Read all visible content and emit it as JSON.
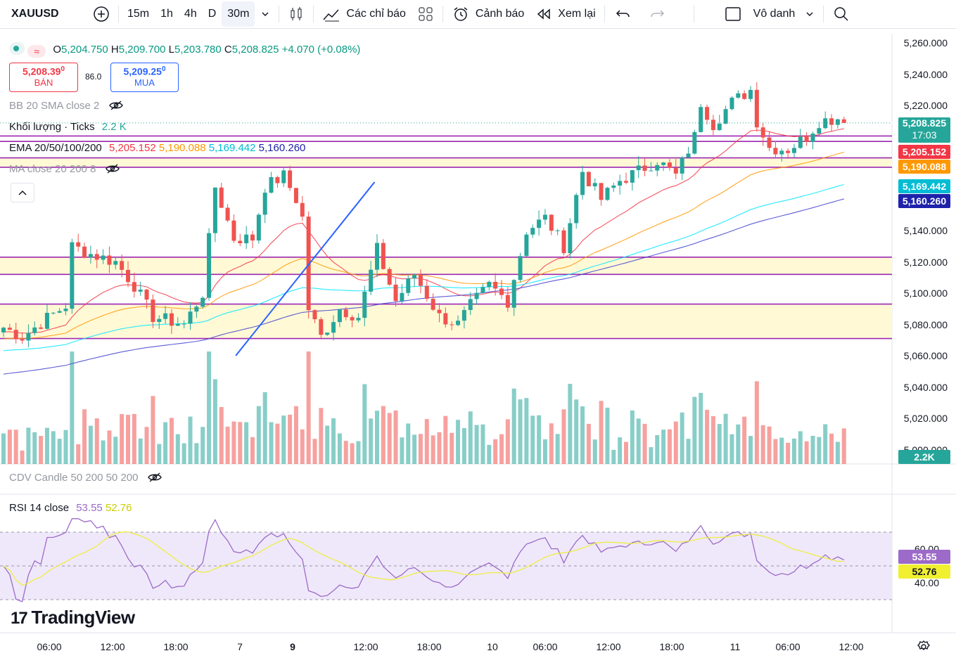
{
  "toolbar": {
    "symbol": "XAUUSD",
    "intervals": [
      "15m",
      "1h",
      "4h",
      "D",
      "30m"
    ],
    "active_interval": "30m",
    "indicators_label": "Các chỉ báo",
    "alerts_label": "Cảnh báo",
    "replay_label": "Xem lại",
    "layout_name": "Vô danh"
  },
  "ohlc": {
    "o_label": "O",
    "o": "5,204.750",
    "h_label": "H",
    "h": "5,209.700",
    "l_label": "L",
    "l": "5,203.780",
    "c_label": "C",
    "c": "5,208.825",
    "change": "+4.070 (+0.08%)"
  },
  "trade": {
    "sell_price": "5,208.39",
    "sell_sup": "0",
    "sell_label": "BÁN",
    "spread": "86.0",
    "buy_price": "5,209.25",
    "buy_sup": "0",
    "buy_label": "MUA"
  },
  "indicators": {
    "bb": "BB 20 SMA close 2",
    "volume": "Khối lượng · Ticks",
    "volume_value": "2.2 K",
    "ema": "EMA 20/50/100/200",
    "ema_values": [
      "5,205.152",
      "5,190.088",
      "5,169.442",
      "5,160.260"
    ],
    "ma": "MA close 20 200 8",
    "cdv": "CDV Candle 50 200 50 200",
    "rsi": "RSI 14 close",
    "rsi_value": "53.55",
    "rsi_ma_value": "52.76"
  },
  "price_labels": [
    {
      "value": "5,208.825",
      "sub": "17:03",
      "color": "#26a69a"
    },
    {
      "value": "5,205.152",
      "color": "#f23645"
    },
    {
      "value": "5,190.088",
      "color": "#ff9800"
    },
    {
      "value": "5,169.442",
      "color": "#00bcd4"
    },
    {
      "value": "5,160.260",
      "color": "#1e22aa"
    }
  ],
  "volume_label": "2.2K",
  "price_axis": [
    "5,260.000",
    "5,240.000",
    "5,220.000",
    "5,200.000",
    "5,180.000",
    "5,160.000",
    "5,140.000",
    "5,120.000",
    "5,100.000",
    "5,080.000",
    "5,060.000",
    "5,040.000",
    "5,020.000",
    "5,000.000"
  ],
  "rsi_axis": [
    "60.00",
    "40.00"
  ],
  "time_axis": [
    "06:00",
    "12:00",
    "18:00",
    "7",
    "9",
    "12:00",
    "18:00",
    "10",
    "06:00",
    "12:00",
    "18:00",
    "11",
    "06:00",
    "12:00"
  ],
  "branding": "TradingView",
  "colors": {
    "up": "#26a69a",
    "down": "#ef5350",
    "ema20": "#f23645",
    "ema50": "#ff9800",
    "ema100": "#00e5ff",
    "ema200": "#3f3fcf",
    "level": "#9c27b0",
    "zone": "#fff9d6",
    "trend": "#2962ff",
    "rsi": "#9c6ac8",
    "rsi_ma": "#eeee44"
  },
  "chart_data": {
    "type": "candlestick",
    "symbol": "XAUUSD",
    "interval": "30m",
    "ylim": [
      4995,
      5265
    ],
    "x_ticks": [
      "06:00",
      "12:00",
      "18:00",
      "7",
      "9",
      "12:00",
      "18:00",
      "10",
      "06:00",
      "12:00",
      "18:00",
      "11",
      "06:00",
      "12:00"
    ],
    "horizontal_levels": [
      5200.5,
      5197,
      5186.5,
      5180.5,
      5123,
      5112,
      5093,
      5071
    ],
    "zones": [
      [
        5180.5,
        5186.5
      ],
      [
        5071,
        5093
      ],
      [
        5112,
        5123
      ]
    ],
    "trendline": {
      "from": [
        37.3,
        5060
      ],
      "to": [
        59.6,
        5171
      ]
    },
    "close_anchors": [
      [
        0,
        5078
      ],
      [
        3,
        5072
      ],
      [
        7,
        5084
      ],
      [
        10,
        5092
      ],
      [
        11,
        5130
      ],
      [
        14,
        5125
      ],
      [
        18,
        5120
      ],
      [
        21,
        5105
      ],
      [
        24,
        5085
      ],
      [
        29,
        5080
      ],
      [
        32,
        5100
      ],
      [
        34,
        5168
      ],
      [
        37,
        5135
      ],
      [
        40,
        5135
      ],
      [
        42,
        5168
      ],
      [
        45,
        5175
      ],
      [
        47,
        5160
      ],
      [
        48,
        5148
      ],
      [
        49,
        5090
      ],
      [
        51,
        5072
      ],
      [
        54,
        5090
      ],
      [
        57,
        5085
      ],
      [
        60,
        5128
      ],
      [
        63,
        5095
      ],
      [
        66,
        5112
      ],
      [
        70,
        5085
      ],
      [
        73,
        5080
      ],
      [
        75,
        5092
      ],
      [
        78,
        5105
      ],
      [
        81,
        5095
      ],
      [
        84,
        5140
      ],
      [
        87,
        5148
      ],
      [
        90,
        5130
      ],
      [
        93,
        5178
      ],
      [
        96,
        5160
      ],
      [
        99,
        5172
      ],
      [
        102,
        5178
      ],
      [
        105,
        5185
      ],
      [
        108,
        5175
      ],
      [
        111,
        5200
      ],
      [
        112,
        5222
      ],
      [
        114,
        5208
      ],
      [
        117,
        5222
      ],
      [
        120,
        5230
      ],
      [
        121,
        5210
      ],
      [
        123,
        5193
      ],
      [
        126,
        5192
      ],
      [
        129,
        5200
      ],
      [
        131,
        5210
      ],
      [
        134,
        5212
      ],
      [
        135,
        5209
      ]
    ],
    "ema_final": {
      "EMA 20": 5205.152,
      "EMA 50": 5190.088,
      "EMA 100": 5169.442,
      "EMA 200": 5160.26
    },
    "last_price": 5208.825,
    "volume_last": "2.2K",
    "rsi": {
      "ylim": [
        20,
        80
      ],
      "levels": [
        70,
        50,
        30
      ],
      "last": 53.55,
      "ma_last": 52.76
    }
  }
}
